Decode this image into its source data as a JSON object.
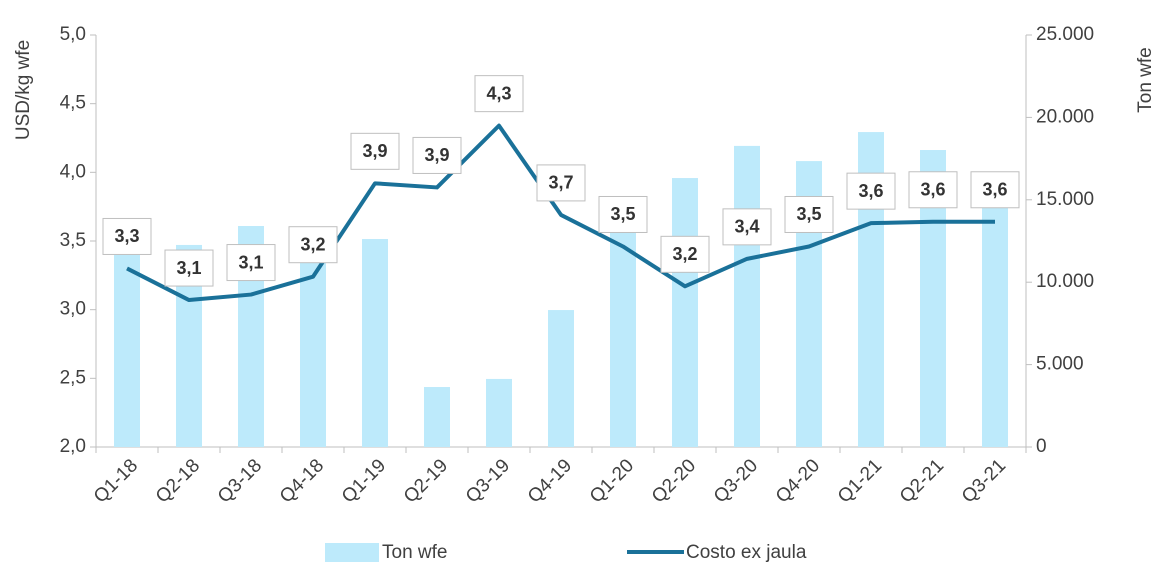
{
  "chart_data": {
    "type": "bar_line",
    "categories": [
      "Q1-18",
      "Q2-18",
      "Q3-18",
      "Q4-18",
      "Q1-19",
      "Q2-19",
      "Q3-19",
      "Q4-19",
      "Q1-20",
      "Q2-20",
      "Q3-20",
      "Q4-20",
      "Q1-21",
      "Q2-21",
      "Q3-21"
    ],
    "ylabel": "USD/kg wfe",
    "y2label": "Ton wfe",
    "ylim": [
      2,
      5
    ],
    "yticks": [
      {
        "value": 2,
        "label": "2,0"
      },
      {
        "value": 2.5,
        "label": "2,5"
      },
      {
        "value": 3,
        "label": "3,0"
      },
      {
        "value": 3.5,
        "label": "3,5"
      },
      {
        "value": 4,
        "label": "4,0"
      },
      {
        "value": 4.5,
        "label": "4,5"
      },
      {
        "value": 5,
        "label": "5,0"
      }
    ],
    "y2lim": [
      0,
      25000
    ],
    "y2ticks": [
      0,
      {
        "value": 5000,
        "label": "5.000"
      },
      {
        "value": 10000,
        "label": "10.000"
      },
      {
        "value": 15000,
        "label": "15.000"
      },
      {
        "value": 20000,
        "label": "20.000"
      },
      {
        "value": 25000,
        "label": "25.000"
      }
    ],
    "series": [
      {
        "name": "Ton wfe",
        "type": "bar",
        "axis": "y2",
        "color": "#bdeafb",
        "values": [
          11650,
          12260,
          13410,
          11600,
          12620,
          3640,
          4130,
          8310,
          14080,
          16320,
          18270,
          17350,
          19110,
          18020,
          15000
        ]
      },
      {
        "name": "Costo ex jaula",
        "type": "line",
        "color": "#1a7199",
        "values": [
          3.3,
          3.07,
          3.11,
          3.24,
          3.92,
          3.89,
          4.34,
          3.69,
          3.46,
          3.17,
          3.37,
          3.46,
          3.63,
          3.64,
          3.64
        ],
        "value_labels": [
          "3,3",
          "3,1",
          "3,1",
          "3,2",
          "3,9",
          "3,9",
          "4,3",
          "3,7",
          "3,5",
          "3,2",
          "3,4",
          "3,5",
          "3,6",
          "3,6",
          "3,6"
        ]
      }
    ],
    "legend": "bottom"
  }
}
